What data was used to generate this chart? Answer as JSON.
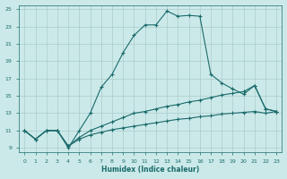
{
  "xlabel": "Humidex (Indice chaleur)",
  "bg_color": "#cce9e9",
  "grid_color": "#aacccc",
  "line_color": "#1a6b6b",
  "xlim": [
    -0.5,
    23.5
  ],
  "ylim": [
    8.5,
    25.5
  ],
  "xticks": [
    0,
    1,
    2,
    3,
    4,
    5,
    6,
    7,
    8,
    9,
    10,
    11,
    12,
    13,
    14,
    15,
    16,
    17,
    18,
    19,
    20,
    21,
    22,
    23
  ],
  "yticks": [
    9,
    11,
    13,
    15,
    17,
    19,
    21,
    23,
    25
  ],
  "line1_x": [
    0,
    1,
    2,
    3,
    4,
    5,
    6,
    7,
    8,
    9,
    10,
    11,
    12,
    13,
    14,
    15,
    16,
    17,
    18,
    19,
    20,
    21,
    22,
    23
  ],
  "line1_y": [
    11,
    10,
    11,
    11,
    9,
    11,
    13,
    16,
    17.5,
    20,
    22,
    23.2,
    23.2,
    24.8,
    24.2,
    24.3,
    24.2,
    17.5,
    16.5,
    15.8,
    15.2,
    16.2,
    13.5,
    13.2
  ],
  "line2_x": [
    0,
    1,
    2,
    3,
    4,
    5,
    6,
    7,
    8,
    9,
    10,
    11,
    12,
    13,
    14,
    15,
    16,
    17,
    18,
    19,
    20,
    21,
    22,
    23
  ],
  "line2_y": [
    11,
    10,
    11,
    11,
    9.2,
    10.2,
    11.0,
    11.5,
    12.0,
    12.5,
    13.0,
    13.2,
    13.5,
    13.8,
    14.0,
    14.3,
    14.5,
    14.8,
    15.1,
    15.3,
    15.5,
    16.2,
    13.5,
    13.2
  ],
  "line3_x": [
    0,
    1,
    2,
    3,
    4,
    5,
    6,
    7,
    8,
    9,
    10,
    11,
    12,
    13,
    14,
    15,
    16,
    17,
    18,
    19,
    20,
    21,
    22,
    23
  ],
  "line3_y": [
    11,
    10,
    11,
    11,
    9.2,
    10.0,
    10.5,
    10.8,
    11.1,
    11.3,
    11.5,
    11.7,
    11.9,
    12.1,
    12.3,
    12.4,
    12.6,
    12.7,
    12.9,
    13.0,
    13.1,
    13.2,
    13.0,
    13.2
  ]
}
